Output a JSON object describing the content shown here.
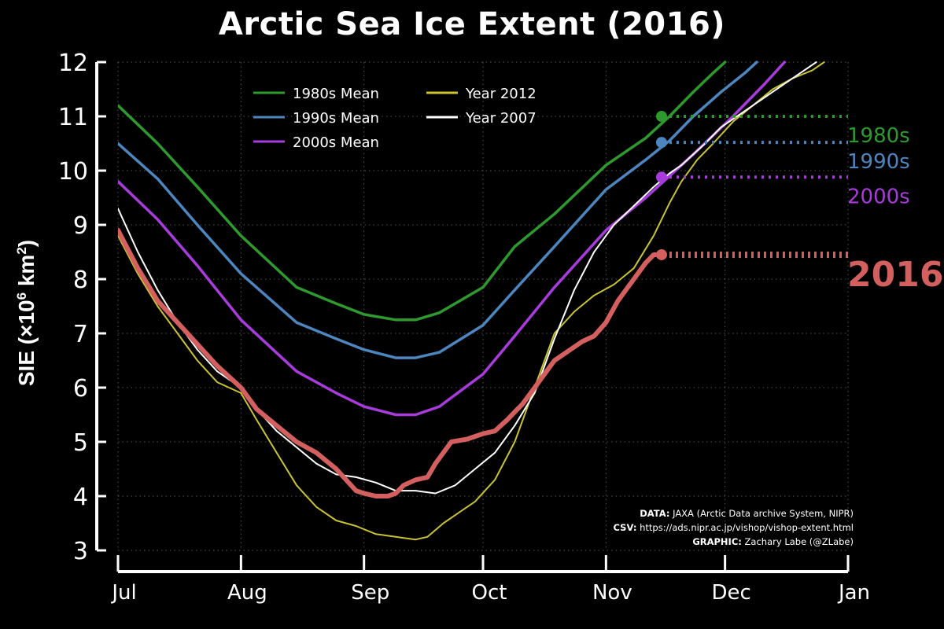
{
  "chart_data": {
    "type": "line",
    "title": "Arctic Sea Ice Extent (2016)",
    "ylabel_prefix": "SIE (×10",
    "ylabel_exp1": "6",
    "ylabel_mid": " km",
    "ylabel_exp2": "2",
    "ylabel_suffix": ")",
    "xlabel": "",
    "xlim": [
      0,
      184
    ],
    "ylim": [
      3,
      12
    ],
    "xtick_positions": [
      0,
      31,
      62,
      92,
      123,
      153,
      184
    ],
    "xtick_labels": [
      "Jul",
      "Aug",
      "Sep",
      "Oct",
      "Nov",
      "Dec",
      "Jan"
    ],
    "ytick_values": [
      3,
      4,
      5,
      6,
      7,
      8,
      9,
      10,
      11,
      12
    ],
    "grid": true,
    "legend": [
      {
        "label": "1980s Mean",
        "series": "m1980"
      },
      {
        "label": "1990s Mean",
        "series": "m1990"
      },
      {
        "label": "2000s Mean",
        "series": "m2000"
      },
      {
        "label": "Year 2012",
        "series": "y2012"
      },
      {
        "label": "Year 2007",
        "series": "y2007"
      }
    ],
    "series": [
      {
        "name": "1980s Mean",
        "key": "m1980",
        "color": "#2e9a2e",
        "end_label": "1980s",
        "x": [
          0,
          10,
          20,
          31,
          45,
          55,
          62,
          70,
          75,
          81,
          92,
          100,
          110,
          123,
          133,
          139,
          145,
          150,
          153
        ],
        "y": [
          11.2,
          10.5,
          9.7,
          8.8,
          7.85,
          7.55,
          7.35,
          7.25,
          7.25,
          7.38,
          7.85,
          8.6,
          9.2,
          10.1,
          10.6,
          11.0,
          11.45,
          11.8,
          12.0
        ]
      },
      {
        "name": "1990s Mean",
        "key": "m1990",
        "color": "#4d86bf",
        "end_label": "1990s",
        "x": [
          0,
          10,
          20,
          31,
          45,
          55,
          62,
          70,
          75,
          81,
          92,
          100,
          110,
          123,
          133,
          139,
          145,
          152,
          158,
          161
        ],
        "y": [
          10.5,
          9.85,
          9.0,
          8.1,
          7.2,
          6.9,
          6.7,
          6.55,
          6.55,
          6.65,
          7.15,
          7.8,
          8.6,
          9.65,
          10.2,
          10.55,
          11.0,
          11.45,
          11.8,
          12.0
        ]
      },
      {
        "name": "2000s Mean",
        "key": "m2000",
        "color": "#a83bdc",
        "end_label": "2000s",
        "x": [
          0,
          10,
          20,
          31,
          45,
          55,
          62,
          70,
          75,
          81,
          92,
          100,
          110,
          123,
          133,
          139,
          145,
          155,
          163,
          168
        ],
        "y": [
          9.8,
          9.1,
          8.25,
          7.25,
          6.3,
          5.9,
          5.65,
          5.5,
          5.5,
          5.65,
          6.25,
          6.95,
          7.85,
          8.9,
          9.5,
          9.9,
          10.3,
          11.0,
          11.6,
          12.0
        ]
      },
      {
        "name": "Year 2012",
        "key": "y2012",
        "color": "#c9c232",
        "end_label": "",
        "x": [
          0,
          5,
          10,
          15,
          20,
          25,
          31,
          35,
          40,
          45,
          50,
          55,
          60,
          65,
          70,
          75,
          78,
          82,
          86,
          90,
          95,
          100,
          105,
          110,
          115,
          120,
          125,
          130,
          135,
          139,
          142,
          146,
          150,
          155,
          160,
          165,
          170,
          175,
          178
        ],
        "y": [
          8.8,
          8.1,
          7.5,
          7.0,
          6.5,
          6.1,
          5.9,
          5.4,
          4.8,
          4.2,
          3.8,
          3.55,
          3.45,
          3.3,
          3.25,
          3.2,
          3.25,
          3.5,
          3.7,
          3.9,
          4.3,
          5.0,
          6.0,
          7.0,
          7.4,
          7.7,
          7.9,
          8.2,
          8.8,
          9.4,
          9.8,
          10.2,
          10.5,
          10.9,
          11.2,
          11.5,
          11.7,
          11.85,
          12.0
        ]
      },
      {
        "name": "Year 2007",
        "key": "y2007",
        "color": "#ffffff",
        "end_label": "",
        "x": [
          0,
          5,
          10,
          15,
          20,
          25,
          31,
          35,
          40,
          45,
          50,
          55,
          60,
          65,
          70,
          75,
          80,
          85,
          90,
          95,
          100,
          105,
          110,
          115,
          120,
          125,
          130,
          135,
          139,
          142,
          145,
          148,
          152,
          156,
          160,
          164,
          168,
          172,
          176
        ],
        "y": [
          9.3,
          8.5,
          7.8,
          7.2,
          6.7,
          6.3,
          6.0,
          5.6,
          5.2,
          4.9,
          4.6,
          4.4,
          4.35,
          4.25,
          4.1,
          4.1,
          4.05,
          4.2,
          4.5,
          4.8,
          5.3,
          5.9,
          6.9,
          7.8,
          8.5,
          9.0,
          9.35,
          9.7,
          9.95,
          10.1,
          10.3,
          10.5,
          10.8,
          11.0,
          11.2,
          11.4,
          11.6,
          11.8,
          12.0
        ]
      },
      {
        "name": "2016",
        "key": "y2016",
        "color": "#d35f5f",
        "end_label": "2016",
        "x": [
          0,
          5,
          10,
          15,
          20,
          25,
          31,
          35,
          40,
          45,
          50,
          55,
          60,
          62,
          65,
          68,
          70,
          72,
          75,
          78,
          80,
          84,
          88,
          92,
          95,
          98,
          100,
          102,
          105,
          108,
          110,
          114,
          117,
          120,
          123,
          126,
          130,
          133,
          135,
          137
        ],
        "y": [
          8.9,
          8.2,
          7.6,
          7.2,
          6.8,
          6.4,
          6.0,
          5.6,
          5.3,
          5.0,
          4.8,
          4.5,
          4.1,
          4.05,
          4.0,
          4.0,
          4.05,
          4.2,
          4.3,
          4.35,
          4.6,
          5.0,
          5.05,
          5.15,
          5.2,
          5.4,
          5.55,
          5.7,
          6.0,
          6.3,
          6.5,
          6.7,
          6.85,
          6.95,
          7.2,
          7.6,
          8.0,
          8.3,
          8.45,
          8.45
        ]
      }
    ],
    "markers": [
      {
        "series": "m1980",
        "x": 137,
        "y": 11.0
      },
      {
        "series": "m1990",
        "x": 137,
        "y": 10.52
      },
      {
        "series": "m2000",
        "x": 137,
        "y": 9.88
      },
      {
        "series": "y2016",
        "x": 137,
        "y": 8.45
      }
    ]
  },
  "credits": {
    "data_label": "DATA:",
    "data_text": "JAXA (Arctic Data archive System, NIPR)",
    "csv_label": "CSV:",
    "csv_text": "https://ads.nipr.ac.jp/vishop/vishop-extent.html",
    "graphic_label": "GRAPHIC:",
    "graphic_text": "Zachary Labe (@ZLabe)"
  }
}
